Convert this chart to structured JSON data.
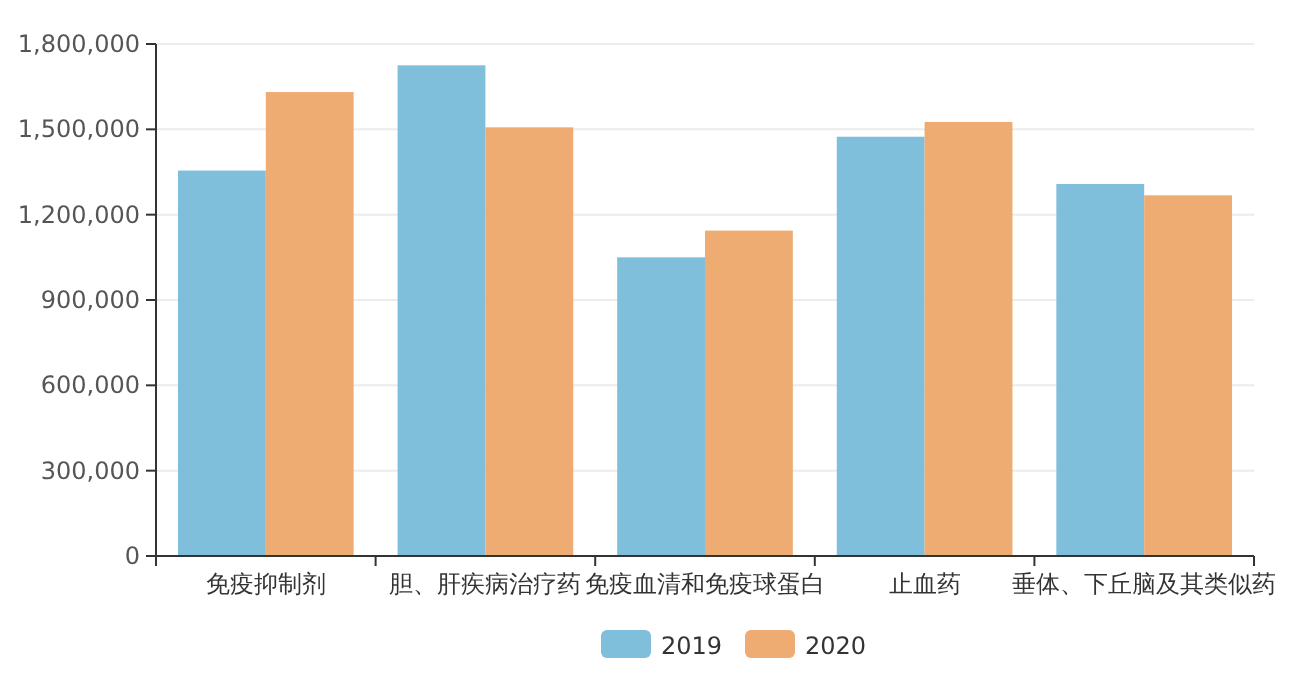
{
  "chart_data": {
    "type": "bar",
    "categories": [
      "免疫抑制剂",
      "胆、肝疾病治疗药",
      "免疫血清和免疫球蛋白",
      "止血药",
      "垂体、下丘脑及其类似药"
    ],
    "series": [
      {
        "name": "2019",
        "color": "#7fbfdb",
        "values": [
          1355000,
          1725000,
          1050000,
          1474000,
          1308000
        ]
      },
      {
        "name": "2020",
        "color": "#eeab72",
        "values": [
          1631000,
          1507000,
          1144000,
          1526000,
          1268000
        ]
      }
    ],
    "ylim": [
      0,
      1800000
    ],
    "yticks": [
      {
        "value": 0,
        "label": "0"
      },
      {
        "value": 300000,
        "label": "300,000"
      },
      {
        "value": 600000,
        "label": "600,000"
      },
      {
        "value": 900000,
        "label": "900,000"
      },
      {
        "value": 1200000,
        "label": "1,200,000"
      },
      {
        "value": 1500000,
        "label": "1,500,000"
      },
      {
        "value": 1800000,
        "label": "1,800,000"
      }
    ],
    "grid": "y",
    "legend": "bottom"
  }
}
